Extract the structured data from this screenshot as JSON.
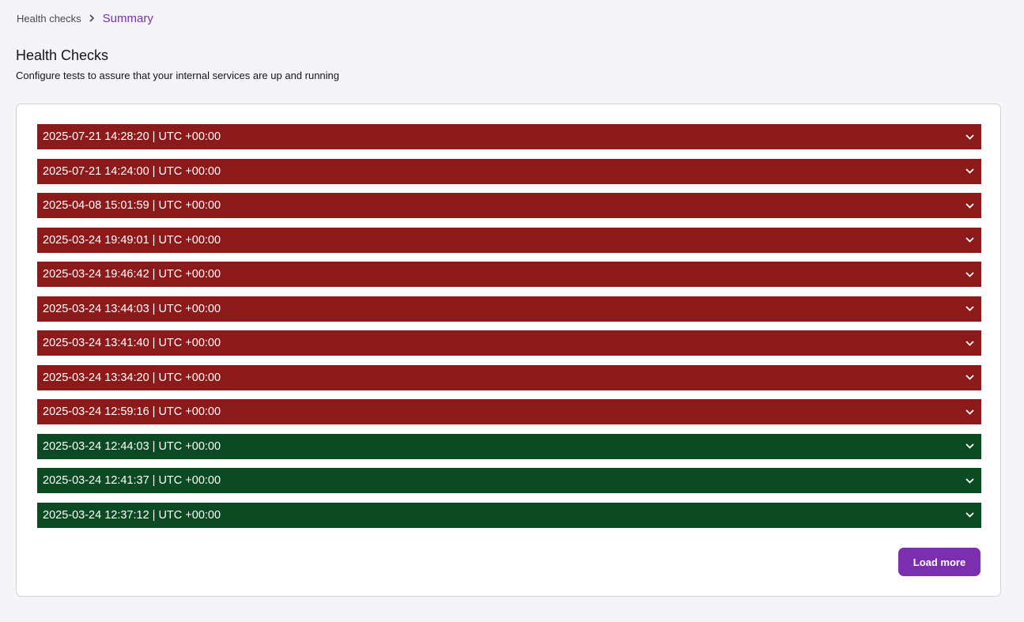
{
  "breadcrumb": {
    "parent": "Health checks",
    "current": "Summary",
    "separator_icon": "chevron-right-icon"
  },
  "header": {
    "title": "Health Checks",
    "subtitle": "Configure tests to assure that your internal services are up and running"
  },
  "colors": {
    "failed": "#8c1a1b",
    "passed": "#0b4a23",
    "accent": "#7b2fb0"
  },
  "checks": [
    {
      "label": "2025-07-21 14:28:20 | UTC +00:00",
      "status": "failed"
    },
    {
      "label": "2025-07-21 14:24:00 | UTC +00:00",
      "status": "failed"
    },
    {
      "label": "2025-04-08 15:01:59 | UTC +00:00",
      "status": "failed"
    },
    {
      "label": "2025-03-24 19:49:01 | UTC +00:00",
      "status": "failed"
    },
    {
      "label": "2025-03-24 19:46:42 | UTC +00:00",
      "status": "failed"
    },
    {
      "label": "2025-03-24 13:44:03 | UTC +00:00",
      "status": "failed"
    },
    {
      "label": "2025-03-24 13:41:40 | UTC +00:00",
      "status": "failed"
    },
    {
      "label": "2025-03-24 13:34:20 | UTC +00:00",
      "status": "failed"
    },
    {
      "label": "2025-03-24 12:59:16 | UTC +00:00",
      "status": "failed"
    },
    {
      "label": "2025-03-24 12:44:03 | UTC +00:00",
      "status": "passed"
    },
    {
      "label": "2025-03-24 12:41:37 | UTC +00:00",
      "status": "passed"
    },
    {
      "label": "2025-03-24 12:37:12 | UTC +00:00",
      "status": "passed"
    }
  ],
  "row_icon": "chevron-down-icon",
  "actions": {
    "load_more": "Load more"
  }
}
